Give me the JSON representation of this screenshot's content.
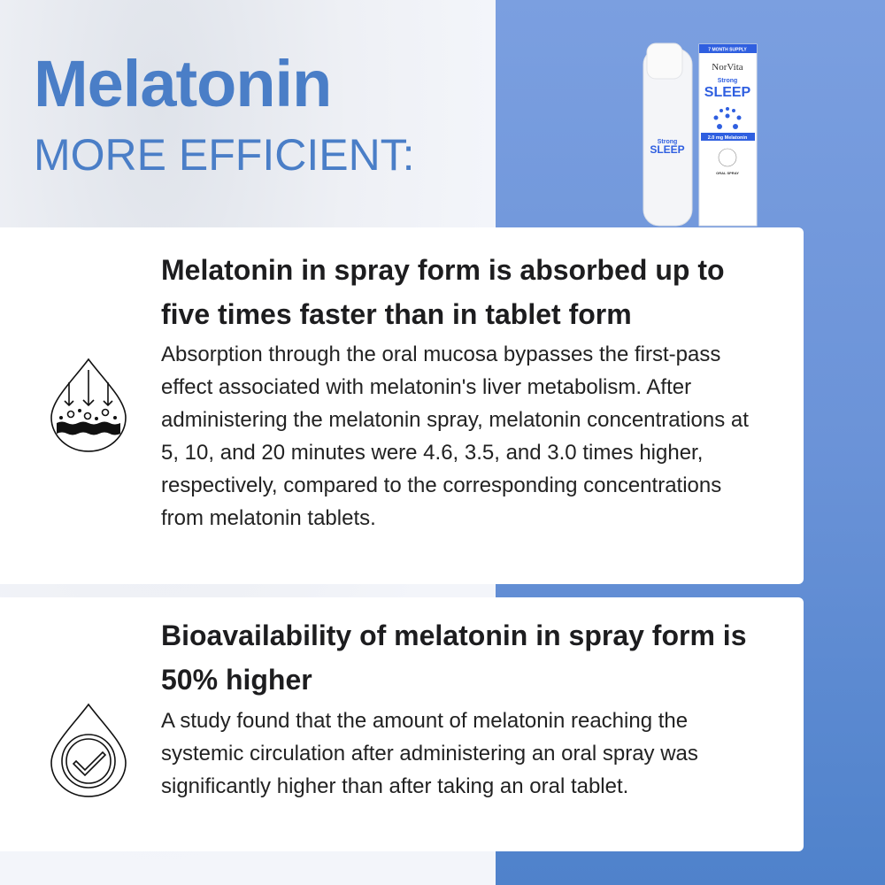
{
  "header": {
    "title": "Melatonin",
    "subtitle": "MORE EFFICIENT:"
  },
  "product": {
    "brand": "NorVita",
    "badge": "7 MONTH SUPPLY",
    "line": "Strong",
    "name": "SLEEP",
    "dose": "2.0 mg Melatonin",
    "form": "ORAL SPRAY",
    "accent": "#2f5fe0"
  },
  "cards": [
    {
      "icon": "absorption-drop-icon",
      "heading": "Melatonin in spray form is absorbed up to five times faster than in tablet form",
      "body": "Absorption through the oral mucosa bypasses the first-pass effect associated with melatonin's liver metabolism. After administering the melatonin spray, melatonin concentrations at 5, 10, and 20 minutes were 4.6, 3.5, and 3.0 times higher, respectively, compared to the corresponding concentrations from melatonin tablets."
    },
    {
      "icon": "check-drop-icon",
      "heading": "Bioavailability of melatonin in spray form is 50% higher",
      "body": "A study found that the amount of melatonin reaching the systemic circulation after administering an oral spray was significantly higher than after taking an oral tablet."
    }
  ],
  "colors": {
    "title": "#4a7ec7",
    "right_panel": "#6b93d8",
    "left_panel": "#f2f4f9"
  }
}
